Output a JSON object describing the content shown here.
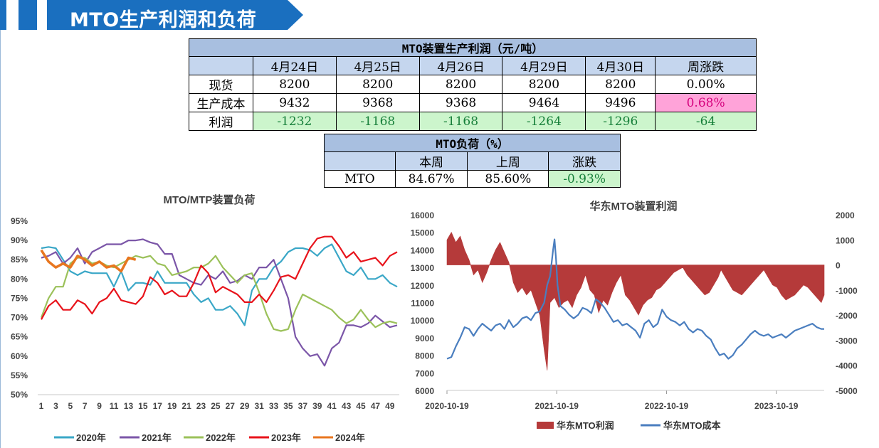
{
  "header": {
    "title": "MTO生产利润和负荷",
    "bar_color": "#1a6fbf"
  },
  "profit_table": {
    "title": "MTO装置生产利润（元/吨）",
    "columns": [
      "4月24日",
      "4月25日",
      "4月26日",
      "4月29日",
      "4月30日",
      "周涨跌"
    ],
    "rows": [
      {
        "label": "现货",
        "values": [
          "8200",
          "8200",
          "8200",
          "8200",
          "8200",
          "0.00%"
        ]
      },
      {
        "label": "生产成本",
        "values": [
          "9432",
          "9368",
          "9368",
          "9464",
          "9496",
          "0.68%"
        ]
      },
      {
        "label": "利润",
        "values": [
          "-1232",
          "-1168",
          "-1168",
          "-1264",
          "-1296",
          "-64"
        ]
      }
    ]
  },
  "load_table": {
    "title": "MTO负荷（%）",
    "columns": [
      "本周",
      "上周",
      "涨跌"
    ],
    "rows": [
      {
        "label": "MTO",
        "values": [
          "84.67%",
          "85.60%",
          "-0.93%"
        ]
      }
    ]
  },
  "chart_data": [
    {
      "type": "line",
      "title": "MTO/MTP装置负荷",
      "x_ticks": [
        "1",
        "3",
        "5",
        "7",
        "9",
        "11",
        "13",
        "15",
        "17",
        "19",
        "21",
        "23",
        "25",
        "27",
        "29",
        "31",
        "33",
        "35",
        "37",
        "39",
        "41",
        "43",
        "45",
        "47",
        "49"
      ],
      "y_ticks": [
        "50%",
        "55%",
        "60%",
        "65%",
        "70%",
        "75%",
        "80%",
        "85%",
        "90%",
        "95%"
      ],
      "ylim": [
        50,
        95
      ],
      "xlim": [
        1,
        50
      ],
      "grid": false,
      "legend": "bottom",
      "series": [
        {
          "name": "2020年",
          "color": "#3aa7c7",
          "values": [
            88,
            88.3,
            88,
            85,
            82,
            81,
            82,
            81.5,
            81.5,
            81.5,
            78,
            82,
            77,
            79,
            79,
            78.5,
            82,
            79,
            79,
            79,
            79,
            76,
            74,
            75,
            72,
            72,
            73,
            71,
            68,
            77,
            80,
            80,
            83,
            84.5,
            87,
            88,
            88,
            87.5,
            86,
            88,
            89,
            85.5,
            82,
            81,
            83,
            80,
            80,
            81,
            79,
            78
          ]
        },
        {
          "name": "2021年",
          "color": "#7b56a8",
          "values": [
            85.5,
            86,
            87,
            84,
            85.5,
            88,
            84,
            87,
            88,
            89,
            89,
            89,
            90,
            90,
            90.3,
            89.5,
            89,
            86.5,
            86.5,
            81,
            80,
            79,
            78.5,
            81,
            80,
            82,
            79,
            79.5,
            81,
            80,
            83,
            83,
            85,
            80,
            75,
            65,
            62,
            60,
            60.5,
            57.5,
            62,
            63.5,
            68,
            68,
            67.5,
            68.5,
            70.5,
            69,
            67.5,
            68
          ]
        },
        {
          "name": "2022年",
          "color": "#9bc15a",
          "values": [
            70,
            75,
            78,
            78,
            84,
            85.5,
            85.5,
            84,
            84.5,
            83.5,
            83,
            84,
            85,
            86,
            85.5,
            86,
            84,
            83.5,
            81,
            81.5,
            82,
            83,
            83,
            84,
            86,
            83,
            81,
            79,
            81,
            81.5,
            76.5,
            71,
            67,
            66.5,
            67,
            72,
            76,
            75,
            74,
            73,
            72,
            70,
            68.5,
            69.5,
            72,
            69.5,
            67.5,
            68.5,
            69,
            68.5
          ]
        },
        {
          "name": "2023年",
          "color": "#e8131b",
          "values": [
            69.5,
            73,
            74.5,
            72,
            72,
            74.5,
            73.5,
            71,
            74,
            75,
            77.5,
            74.5,
            74,
            73.5,
            75.5,
            80.5,
            79,
            76,
            77,
            75.5,
            75.5,
            79,
            83.5,
            81.5,
            76.5,
            78,
            77,
            76,
            74,
            74,
            76,
            74,
            77,
            80.5,
            81,
            80,
            84,
            88,
            90.5,
            91,
            91,
            88.5,
            85.5,
            87,
            84.5,
            85,
            85.5,
            83.5,
            86,
            87
          ]
        },
        {
          "name": "2024年",
          "color": "#e8761f",
          "values": [
            87.5,
            84.5,
            83,
            84,
            83,
            86,
            85,
            83.5,
            84.5,
            83,
            83.5,
            82,
            85.5,
            85
          ]
        }
      ]
    },
    {
      "type": "area+line",
      "title": "华东MTO装置利润",
      "x_ticks": [
        "2020-10-19",
        "2021-10-19",
        "2022-10-19",
        "2023-10-19"
      ],
      "y_left_ticks": [
        "6000",
        "7000",
        "8000",
        "9000",
        "10000",
        "11000",
        "12000",
        "13000",
        "14000",
        "15000",
        "16000"
      ],
      "y_right_ticks": [
        "2000",
        "1000",
        "0",
        "-1000",
        "-2000",
        "-3000",
        "-4000",
        "-5000"
      ],
      "ylim_left": [
        6000,
        16000
      ],
      "ylim_right": [
        -5000,
        2000
      ],
      "legend": "bottom",
      "series": [
        {
          "name": "华东MTO利润",
          "color": "#b53a3a",
          "axis": "right",
          "points": [
            [
              0,
              1000
            ],
            [
              3,
              1300
            ],
            [
              6,
              900
            ],
            [
              9,
              1150
            ],
            [
              12,
              600
            ],
            [
              15,
              200
            ],
            [
              18,
              -400
            ],
            [
              21,
              -200
            ],
            [
              24,
              -700
            ],
            [
              27,
              -300
            ],
            [
              30,
              200
            ],
            [
              33,
              600
            ],
            [
              36,
              900
            ],
            [
              39,
              500
            ],
            [
              42,
              100
            ],
            [
              45,
              -700
            ],
            [
              48,
              -1100
            ],
            [
              51,
              -900
            ],
            [
              54,
              -1200
            ],
            [
              57,
              -1000
            ],
            [
              60,
              -1500
            ],
            [
              63,
              -2000
            ],
            [
              66,
              -3400
            ],
            [
              68,
              -4200
            ],
            [
              70,
              -1500
            ],
            [
              73,
              -1300
            ],
            [
              76,
              -1700
            ],
            [
              79,
              -1500
            ],
            [
              82,
              -1400
            ],
            [
              85,
              -1700
            ],
            [
              88,
              -1200
            ],
            [
              91,
              -900
            ],
            [
              94,
              -400
            ],
            [
              97,
              -1000
            ],
            [
              100,
              -1200
            ],
            [
              103,
              -1900
            ],
            [
              106,
              -1400
            ],
            [
              109,
              -1600
            ],
            [
              112,
              -1100
            ],
            [
              115,
              -700
            ],
            [
              118,
              -400
            ],
            [
              121,
              -1200
            ],
            [
              124,
              -1400
            ],
            [
              127,
              -1700
            ],
            [
              130,
              -2000
            ],
            [
              133,
              -1600
            ],
            [
              136,
              -1400
            ],
            [
              139,
              -1300
            ],
            [
              142,
              -1000
            ],
            [
              145,
              -900
            ],
            [
              148,
              -700
            ],
            [
              151,
              -500
            ],
            [
              154,
              -300
            ],
            [
              157,
              -200
            ],
            [
              160,
              -100
            ],
            [
              163,
              -400
            ],
            [
              166,
              -600
            ],
            [
              169,
              -800
            ],
            [
              172,
              -1000
            ],
            [
              175,
              -1200
            ],
            [
              178,
              -1100
            ],
            [
              181,
              -800
            ],
            [
              184,
              -500
            ],
            [
              186,
              -200
            ],
            [
              188,
              -400
            ],
            [
              191,
              -700
            ],
            [
              194,
              -1000
            ],
            [
              197,
              -1100
            ],
            [
              200,
              -1200
            ],
            [
              203,
              -1000
            ],
            [
              206,
              -800
            ],
            [
              209,
              -600
            ],
            [
              212,
              -400
            ],
            [
              215,
              -200
            ],
            [
              218,
              -500
            ],
            [
              221,
              -800
            ],
            [
              224,
              -900
            ],
            [
              227,
              -1200
            ],
            [
              230,
              -1400
            ],
            [
              233,
              -1300
            ],
            [
              236,
              -1200
            ],
            [
              239,
              -1000
            ],
            [
              242,
              -800
            ],
            [
              245,
              -900
            ],
            [
              248,
              -1100
            ],
            [
              251,
              -1300
            ],
            [
              254,
              -1500
            ],
            [
              256,
              -1200
            ]
          ]
        },
        {
          "name": "华东MTO成本",
          "color": "#4a7ebf",
          "axis": "left",
          "points": [
            [
              0,
              7800
            ],
            [
              3,
              7900
            ],
            [
              6,
              8500
            ],
            [
              9,
              9000
            ],
            [
              12,
              9600
            ],
            [
              15,
              9500
            ],
            [
              18,
              9100
            ],
            [
              21,
              9500
            ],
            [
              24,
              9800
            ],
            [
              27,
              9600
            ],
            [
              30,
              9400
            ],
            [
              33,
              9700
            ],
            [
              36,
              9800
            ],
            [
              39,
              9500
            ],
            [
              42,
              10000
            ],
            [
              45,
              9600
            ],
            [
              48,
              9800
            ],
            [
              51,
              10100
            ],
            [
              54,
              10200
            ],
            [
              57,
              10000
            ],
            [
              60,
              10400
            ],
            [
              63,
              10500
            ],
            [
              66,
              11000
            ],
            [
              68,
              12000
            ],
            [
              70,
              12500
            ],
            [
              72,
              14000
            ],
            [
              73,
              14600
            ],
            [
              74,
              13500
            ],
            [
              75,
              12000
            ],
            [
              77,
              10800
            ],
            [
              80,
              10600
            ],
            [
              83,
              10300
            ],
            [
              86,
              10100
            ],
            [
              89,
              10300
            ],
            [
              92,
              10700
            ],
            [
              95,
              10600
            ],
            [
              98,
              10400
            ],
            [
              101,
              11200
            ],
            [
              104,
              11000
            ],
            [
              107,
              10700
            ],
            [
              110,
              10300
            ],
            [
              113,
              9900
            ],
            [
              116,
              10000
            ],
            [
              119,
              9700
            ],
            [
              122,
              9800
            ],
            [
              125,
              9600
            ],
            [
              128,
              9400
            ],
            [
              131,
              9000
            ],
            [
              134,
              9800
            ],
            [
              137,
              10000
            ],
            [
              140,
              9600
            ],
            [
              143,
              9800
            ],
            [
              146,
              10600
            ],
            [
              149,
              10200
            ],
            [
              152,
              10000
            ],
            [
              155,
              9900
            ],
            [
              158,
              9700
            ],
            [
              161,
              9900
            ],
            [
              164,
              9500
            ],
            [
              167,
              9300
            ],
            [
              170,
              9500
            ],
            [
              173,
              9400
            ],
            [
              176,
              9100
            ],
            [
              179,
              8900
            ],
            [
              182,
              8400
            ],
            [
              185,
              8000
            ],
            [
              188,
              8100
            ],
            [
              191,
              7800
            ],
            [
              194,
              8000
            ],
            [
              197,
              8400
            ],
            [
              200,
              8600
            ],
            [
              203,
              8900
            ],
            [
              206,
              9200
            ],
            [
              209,
              9400
            ],
            [
              212,
              9200
            ],
            [
              215,
              9100
            ],
            [
              218,
              9200
            ],
            [
              221,
              9000
            ],
            [
              224,
              9100
            ],
            [
              227,
              9200
            ],
            [
              230,
              9000
            ],
            [
              233,
              9200
            ],
            [
              236,
              9400
            ],
            [
              239,
              9500
            ],
            [
              242,
              9600
            ],
            [
              245,
              9700
            ],
            [
              248,
              9800
            ],
            [
              251,
              9600
            ],
            [
              254,
              9500
            ],
            [
              256,
              9500
            ]
          ]
        }
      ]
    }
  ]
}
